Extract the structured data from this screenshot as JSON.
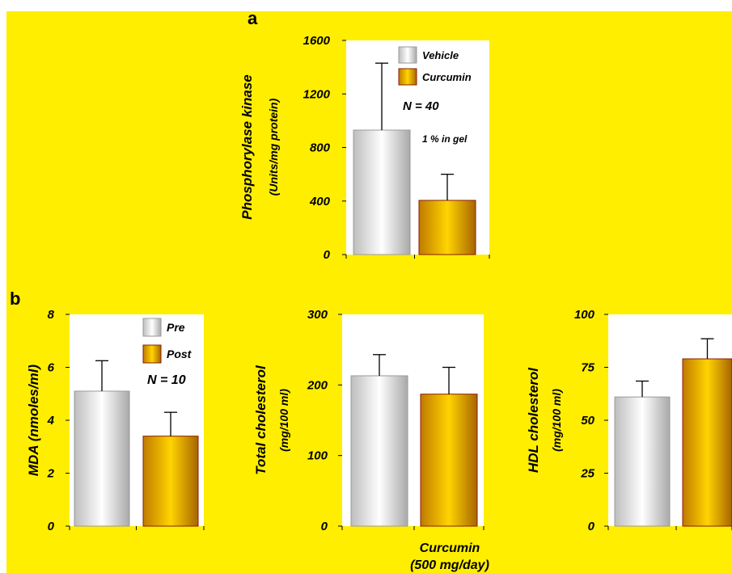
{
  "colors": {
    "background": "#ffee00",
    "plot_area": "#ffffff",
    "vehicle_bar": "#d0d0d0",
    "curcumin_bar": "#e0a000",
    "curcumin_edge": "#8a1c00"
  },
  "panel_a": {
    "label": "a",
    "chart_data": {
      "type": "bar",
      "categories": [
        "Vehicle",
        "Curcumin"
      ],
      "values": [
        930,
        405
      ],
      "errors": [
        500,
        195
      ],
      "ylabel": "Phosphorylase kinase",
      "ylabel_units": "(Units/mg protein)",
      "ylim": [
        0,
        1600
      ],
      "yticks": [
        "0",
        "400",
        "800",
        "1200",
        "1600"
      ],
      "legend": [
        {
          "name": "Vehicle",
          "color": "#d0d0d0"
        },
        {
          "name": "Curcumin",
          "color": "#e0a000"
        }
      ],
      "legend_position": "top-right",
      "annotations": [
        "N = 40",
        "1 % in gel"
      ]
    }
  },
  "panel_b": {
    "label": "b",
    "xlabel_line1": "Curcumin",
    "xlabel_line2": "(500 mg/day)",
    "charts": [
      {
        "chart_data": {
          "type": "bar",
          "categories": [
            "Pre",
            "Post"
          ],
          "values": [
            5.1,
            3.4
          ],
          "errors": [
            1.15,
            0.9
          ],
          "ylabel": "MDA (nmoles/ml)",
          "ylim": [
            0,
            8
          ],
          "yticks": [
            "0",
            "2",
            "4",
            "6",
            "8"
          ],
          "legend": [
            {
              "name": "Pre",
              "color": "#d0d0d0"
            },
            {
              "name": "Post",
              "color": "#e0a000"
            }
          ],
          "legend_position": "top-right",
          "annotations": [
            "N = 10"
          ]
        }
      },
      {
        "chart_data": {
          "type": "bar",
          "categories": [
            "Pre",
            "Post"
          ],
          "values": [
            213,
            187
          ],
          "errors": [
            30,
            38
          ],
          "ylabel": "Total cholesterol",
          "ylabel_units": "(mg/100 ml)",
          "ylim": [
            0,
            300
          ],
          "yticks": [
            "0",
            "100",
            "200",
            "300"
          ]
        }
      },
      {
        "chart_data": {
          "type": "bar",
          "categories": [
            "Pre",
            "Post"
          ],
          "values": [
            61,
            79
          ],
          "errors": [
            7.5,
            9.5
          ],
          "ylabel": "HDL cholesterol",
          "ylabel_units": "(mg/100 ml)",
          "ylim": [
            0,
            100
          ],
          "yticks": [
            "0",
            "25",
            "50",
            "75",
            "100"
          ]
        }
      }
    ]
  }
}
